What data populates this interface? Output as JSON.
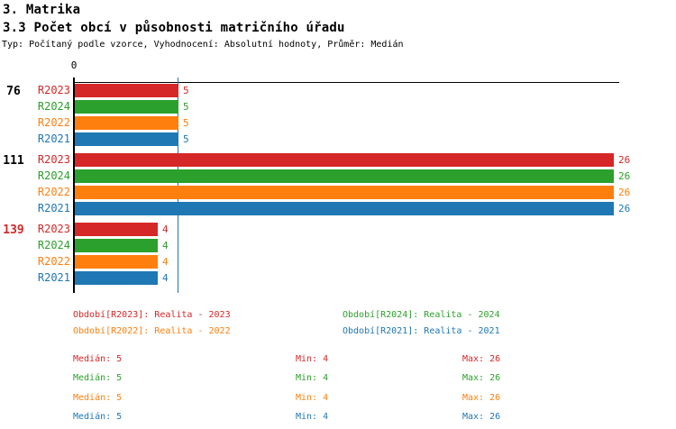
{
  "title": "3. Matrika",
  "subtitle": "3.3 Počet obcí v působnosti matričního úřadu",
  "meta": "Typ: Počítaný podle vzorce, Vyhodnocení: Absolutní hodnoty, Průměr: Medián",
  "chart_data": {
    "type": "bar",
    "orientation": "horizontal",
    "x_axis": {
      "origin_label": "0",
      "origin_value": 0
    },
    "median_reference_value": 5,
    "series_order": [
      "R2023",
      "R2024",
      "R2022",
      "R2021"
    ],
    "series_colors": {
      "R2023": "#d62728",
      "R2024": "#2ca02c",
      "R2022": "#ff7f0e",
      "R2021": "#1f77b4"
    },
    "median_line_color": "#1f77b4",
    "groups": [
      {
        "label": "76",
        "label_color": "#000000",
        "bars": [
          {
            "series": "R2023",
            "value": 5
          },
          {
            "series": "R2024",
            "value": 5
          },
          {
            "series": "R2022",
            "value": 5
          },
          {
            "series": "R2021",
            "value": 5
          }
        ]
      },
      {
        "label": "111",
        "label_color": "#000000",
        "bars": [
          {
            "series": "R2023",
            "value": 26
          },
          {
            "series": "R2024",
            "value": 26
          },
          {
            "series": "R2022",
            "value": 26
          },
          {
            "series": "R2021",
            "value": 26
          }
        ]
      },
      {
        "label": "139",
        "label_color": "#d62728",
        "bars": [
          {
            "series": "R2023",
            "value": 4
          },
          {
            "series": "R2024",
            "value": 4
          },
          {
            "series": "R2022",
            "value": 4
          },
          {
            "series": "R2021",
            "value": 4
          }
        ]
      }
    ]
  },
  "legend": [
    {
      "series": "R2023",
      "text": "Období[R2023]: Realita - 2023",
      "color": "#d62728",
      "row": 0,
      "col": 0
    },
    {
      "series": "R2024",
      "text": "Období[R2024]: Realita - 2024",
      "color": "#2ca02c",
      "row": 0,
      "col": 1
    },
    {
      "series": "R2022",
      "text": "Období[R2022]: Realita - 2022",
      "color": "#ff7f0e",
      "row": 1,
      "col": 0
    },
    {
      "series": "R2021",
      "text": "Období[R2021]: Realita - 2021",
      "color": "#1f77b4",
      "row": 1,
      "col": 1
    }
  ],
  "stats": [
    {
      "series": "R2023",
      "color": "#d62728",
      "median_label": "Medián: 5",
      "min_label": "Min: 4",
      "max_label": "Max: 26"
    },
    {
      "series": "R2024",
      "color": "#2ca02c",
      "median_label": "Medián: 5",
      "min_label": "Min: 4",
      "max_label": "Max: 26"
    },
    {
      "series": "R2022",
      "color": "#ff7f0e",
      "median_label": "Medián: 5",
      "min_label": "Min: 4",
      "max_label": "Max: 26"
    },
    {
      "series": "R2021",
      "color": "#1f77b4",
      "median_label": "Medián: 5",
      "min_label": "Min: 4",
      "max_label": "Max: 26"
    }
  ]
}
